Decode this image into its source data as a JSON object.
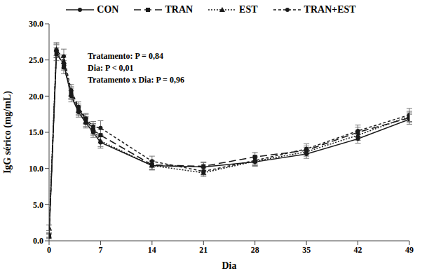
{
  "chart_data": {
    "type": "line",
    "x_label": "Dia",
    "y_label": "IgG sérico (mg/mL)",
    "annotations": [
      "Tratamento: P = 0,84",
      "Dia: P < 0,01",
      "Tratamento x Dia: P = 0,96"
    ],
    "x": [
      0,
      1,
      2,
      3,
      4,
      5,
      6,
      7,
      14,
      21,
      28,
      35,
      42,
      49
    ],
    "xlim": [
      0,
      49
    ],
    "xticks": [
      0,
      7,
      14,
      21,
      28,
      35,
      42,
      49
    ],
    "ylim": [
      0,
      30
    ],
    "yticks": [
      {
        "value": 0,
        "label": "0.0"
      },
      {
        "value": 5,
        "label": "5.0"
      },
      {
        "value": 10,
        "label": "10.0"
      },
      {
        "value": 15,
        "label": "15.0"
      },
      {
        "value": 20,
        "label": "20.0"
      },
      {
        "value": 25,
        "label": "25.0"
      },
      {
        "value": 30,
        "label": "30.0"
      }
    ],
    "grid": false,
    "legend": "top",
    "series": [
      {
        "name": "CON",
        "color": "#1a1a1a",
        "marker": "circle",
        "line_style": "solid",
        "values": [
          0.8,
          25.8,
          24.5,
          20.0,
          17.8,
          16.3,
          15.0,
          13.6,
          10.4,
          10.2,
          10.9,
          12.0,
          14.1,
          16.8
        ],
        "errors": [
          0.3,
          0.9,
          0.9,
          0.8,
          0.7,
          0.7,
          0.7,
          0.8,
          0.6,
          0.6,
          0.6,
          0.6,
          0.6,
          0.7
        ]
      },
      {
        "name": "TRAN",
        "color": "#1a1a1a",
        "marker": "square",
        "line_style": "long_dash",
        "values": [
          0.6,
          26.3,
          24.0,
          20.5,
          18.2,
          16.8,
          15.3,
          14.6,
          10.5,
          10.3,
          11.6,
          12.5,
          15.0,
          17.0
        ],
        "errors": [
          0.3,
          0.9,
          0.9,
          0.8,
          0.7,
          0.7,
          0.7,
          0.8,
          0.6,
          0.6,
          0.6,
          0.6,
          0.7,
          0.7
        ]
      },
      {
        "name": "EST",
        "color": "#1a1a1a",
        "marker": "triangle",
        "line_style": "dotted",
        "values": [
          1.8,
          26.5,
          24.8,
          20.3,
          18.0,
          16.5,
          15.5,
          13.8,
          10.4,
          9.4,
          11.0,
          12.3,
          14.6,
          17.2
        ],
        "errors": [
          0.4,
          0.9,
          0.9,
          0.8,
          0.7,
          0.7,
          0.7,
          0.8,
          0.6,
          0.5,
          0.6,
          0.6,
          0.7,
          0.7
        ]
      },
      {
        "name": "TRAN+EST",
        "color": "#1a1a1a",
        "marker": "circle",
        "line_style": "dashed",
        "values": [
          0.7,
          26.2,
          25.5,
          20.8,
          18.5,
          16.9,
          15.8,
          15.6,
          11.0,
          9.6,
          11.1,
          12.7,
          15.2,
          17.4
        ],
        "errors": [
          0.3,
          0.9,
          1.0,
          0.8,
          0.7,
          0.7,
          0.7,
          1.0,
          0.7,
          0.5,
          0.6,
          0.7,
          0.8,
          0.9
        ]
      }
    ]
  }
}
